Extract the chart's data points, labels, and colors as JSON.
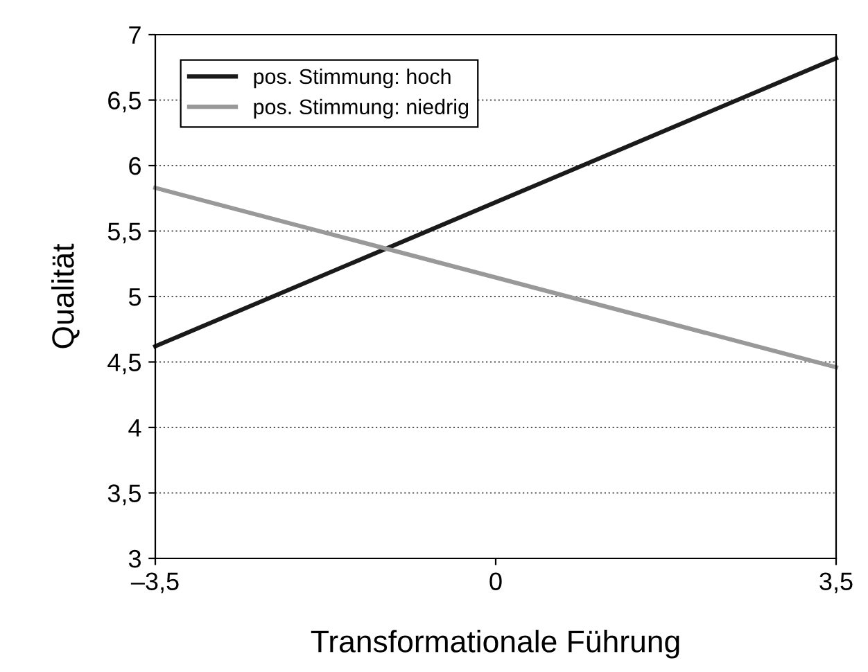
{
  "chart_data": {
    "type": "line",
    "xlabel": "Transformationale Führung",
    "ylabel": "Qualität",
    "x": [
      -3.5,
      3.5
    ],
    "series": [
      {
        "name": "pos. Stimmung: hoch",
        "color": "#1a1a1a",
        "values": [
          4.62,
          6.82
        ]
      },
      {
        "name": "pos. Stimmung: niedrig",
        "color": "#999999",
        "values": [
          5.83,
          4.46
        ]
      }
    ],
    "xlim": [
      -3.5,
      3.5
    ],
    "xticks": [
      {
        "value": -3.5,
        "label": "–3,5"
      },
      0,
      {
        "value": 3.5,
        "label": "3,5"
      }
    ],
    "ylim": [
      3,
      7
    ],
    "yticks": [
      3,
      {
        "value": 3.5,
        "label": "3,5"
      },
      4,
      {
        "value": 4.5,
        "label": "4,5"
      },
      5,
      {
        "value": 5.5,
        "label": "5,5"
      },
      6,
      {
        "value": 6.5,
        "label": "6,5"
      },
      7
    ],
    "grid": "y",
    "legend": "top left",
    "marker": "none",
    "line_style": "solid"
  }
}
